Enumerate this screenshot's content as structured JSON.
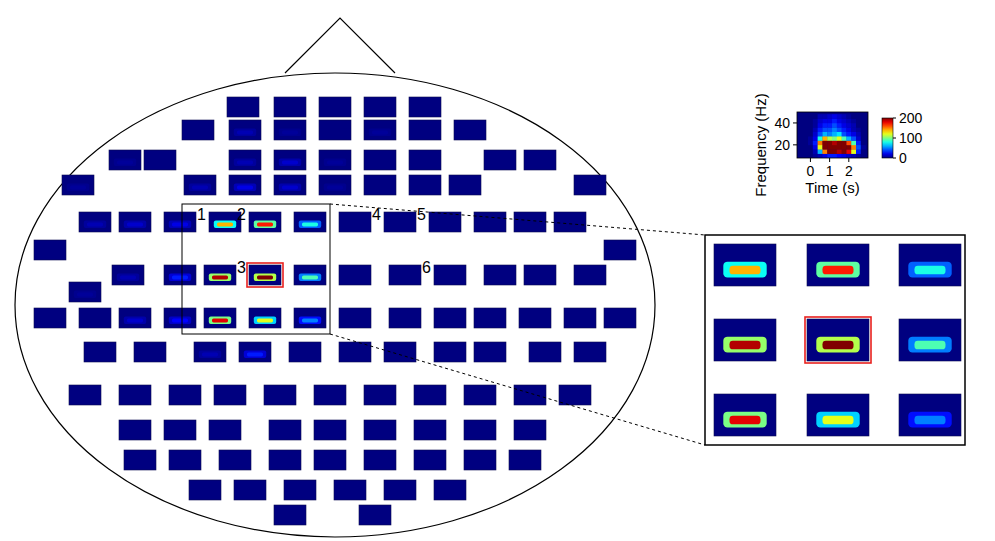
{
  "chart_data": {
    "type": "heatmap",
    "electrode_power": [
      [
        0,
        0,
        0,
        0,
        0
      ],
      [
        0,
        10,
        5,
        0,
        5,
        0,
        0
      ],
      [
        5,
        0,
        10,
        15,
        5,
        0,
        0,
        0,
        0
      ],
      [
        5,
        10,
        20,
        15,
        5,
        0,
        0,
        0,
        0
      ],
      [
        10,
        15,
        20,
        140,
        170,
        80,
        0,
        0,
        0,
        0,
        0,
        0
      ],
      [
        0,
        0
      ],
      [
        10,
        30,
        190,
        200,
        90,
        0,
        0,
        0,
        0,
        0,
        0
      ],
      [
        5
      ],
      [
        0,
        0,
        15,
        25,
        180,
        120,
        50,
        0,
        0,
        0,
        0,
        0,
        0,
        0
      ],
      [
        0,
        0,
        10,
        30,
        0,
        0,
        0,
        0,
        0,
        0,
        0
      ],
      [
        0,
        0,
        0,
        0,
        0,
        0,
        0,
        0,
        0,
        0,
        0
      ],
      [
        0,
        0,
        0,
        0,
        0,
        0,
        0,
        0,
        0
      ],
      [
        0,
        0,
        0,
        0,
        0,
        0,
        0,
        0,
        0
      ],
      [
        0,
        0,
        0,
        0,
        0,
        0
      ],
      [
        0,
        0
      ]
    ],
    "electrode_labels": [
      [
        null,
        null,
        null,
        null,
        null
      ],
      [
        null,
        null,
        null,
        null,
        null,
        null,
        null
      ],
      [
        null,
        null,
        null,
        null,
        null,
        null,
        null,
        null,
        null
      ],
      [
        null,
        null,
        null,
        null,
        null,
        null,
        null,
        null,
        null
      ],
      [
        null,
        null,
        null,
        "1",
        "2",
        null,
        null,
        "4",
        "5",
        null,
        null,
        null
      ],
      [
        null,
        null
      ],
      [
        null,
        null,
        null,
        "3",
        null,
        null,
        null,
        "6",
        null,
        null,
        null
      ],
      [
        null
      ],
      [
        null,
        null,
        null,
        null,
        null,
        null,
        null,
        null,
        null,
        null,
        null,
        null,
        null,
        null
      ],
      [
        null,
        null,
        null,
        null,
        null,
        null,
        null,
        null,
        null,
        null,
        null
      ],
      [
        null,
        null,
        null,
        null,
        null,
        null,
        null,
        null,
        null,
        null,
        null
      ],
      [
        null,
        null,
        null,
        null,
        null,
        null,
        null,
        null,
        null
      ],
      [
        null,
        null,
        null,
        null,
        null,
        null,
        null,
        null,
        null
      ],
      [
        null,
        null,
        null,
        null,
        null,
        null
      ],
      [
        null,
        null
      ]
    ],
    "highlight": "3",
    "example": {
      "xlabel": "Time (s)",
      "ylabel": "Frequency (Hz)",
      "xlim": [
        -0.7,
        3
      ],
      "ylim": [
        8,
        50
      ],
      "xticks": [
        0,
        1,
        2
      ],
      "yticks": [
        20,
        40
      ],
      "x": [
        -0.5,
        -0.25,
        0,
        0.25,
        0.5,
        0.75,
        1,
        1.25,
        1.5,
        1.75,
        2,
        2.25,
        2.5,
        2.75
      ],
      "y": [
        10,
        14,
        18,
        22,
        26,
        30,
        34,
        38,
        42,
        46
      ],
      "cells": [
        [
          0,
          0,
          0,
          5,
          10,
          20,
          30,
          30,
          25,
          20,
          15,
          10,
          5,
          0
        ],
        [
          0,
          0,
          0,
          10,
          60,
          150,
          200,
          200,
          190,
          200,
          180,
          120,
          30,
          0
        ],
        [
          0,
          0,
          0,
          20,
          120,
          200,
          200,
          200,
          200,
          200,
          200,
          150,
          40,
          5
        ],
        [
          0,
          0,
          5,
          30,
          150,
          200,
          200,
          190,
          200,
          200,
          160,
          90,
          30,
          0
        ],
        [
          0,
          0,
          5,
          20,
          80,
          140,
          110,
          100,
          120,
          90,
          60,
          40,
          15,
          0
        ],
        [
          0,
          0,
          0,
          15,
          40,
          60,
          50,
          60,
          70,
          40,
          30,
          20,
          10,
          0
        ],
        [
          0,
          0,
          0,
          10,
          30,
          40,
          40,
          50,
          40,
          30,
          20,
          10,
          5,
          0
        ],
        [
          0,
          0,
          0,
          5,
          20,
          30,
          30,
          40,
          30,
          20,
          15,
          10,
          0,
          0
        ],
        [
          0,
          0,
          0,
          5,
          15,
          20,
          20,
          30,
          20,
          15,
          10,
          5,
          0,
          0
        ],
        [
          0,
          0,
          0,
          0,
          10,
          10,
          15,
          20,
          15,
          10,
          5,
          0,
          0,
          0
        ]
      ]
    },
    "colorbar": {
      "range": [
        0,
        200
      ],
      "ticks": [
        0,
        100,
        200
      ]
    }
  }
}
